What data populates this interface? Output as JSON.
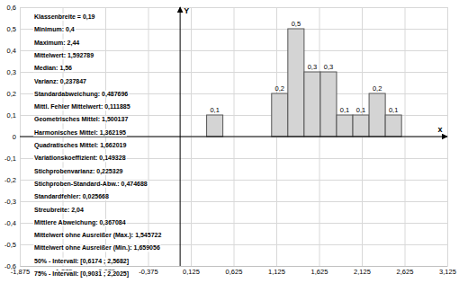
{
  "chart_data": {
    "type": "histogram",
    "x_label": "x",
    "y_label": "Y",
    "bins": [
      0.31,
      0.5,
      0.69,
      0.88,
      1.07,
      1.26,
      1.45,
      1.64,
      1.83,
      2.02,
      2.21,
      2.4,
      2.59
    ],
    "values": [
      0.1,
      0,
      0,
      0,
      0.2,
      0.5,
      0.3,
      0.3,
      0.1,
      0.1,
      0.2,
      0.1
    ],
    "value_labels": [
      "0,1",
      null,
      null,
      null,
      "0,2",
      "0,5",
      "0,3",
      "0,3",
      "0,1",
      "0,1",
      "0,2",
      "0,1"
    ],
    "data_labels": true,
    "color": "#d4d4d4",
    "grid": true,
    "xlim": [
      -1.875,
      3.125
    ],
    "xticks": [
      {
        "value": -1.875,
        "label": "-1,875"
      },
      {
        "value": -1.375,
        "label": "-1,375"
      },
      {
        "value": -0.875,
        "label": "-0,875"
      },
      {
        "value": -0.375,
        "label": "-0,375"
      },
      {
        "value": 0.125,
        "label": "0,125"
      },
      {
        "value": 0.625,
        "label": "0,625"
      },
      {
        "value": 1.125,
        "label": "1,125"
      },
      {
        "value": 1.625,
        "label": "1,625"
      },
      {
        "value": 2.125,
        "label": "2,125"
      },
      {
        "value": 2.625,
        "label": "2,625"
      },
      {
        "value": 3.125,
        "label": "3,125"
      }
    ],
    "ylim": [
      -0.6,
      0.6
    ],
    "yticks": [
      {
        "value": -0.6,
        "label": "-0,6"
      },
      {
        "value": -0.5,
        "label": "-0,5"
      },
      {
        "value": -0.4,
        "label": "-0,4"
      },
      {
        "value": -0.3,
        "label": "-0,3"
      },
      {
        "value": -0.2,
        "label": "-0,2"
      },
      {
        "value": -0.1,
        "label": "-0,1"
      },
      0,
      {
        "value": 0.1,
        "label": "0,1"
      },
      {
        "value": 0.2,
        "label": "0,2"
      },
      {
        "value": 0.3,
        "label": "0,3"
      },
      {
        "value": 0.4,
        "label": "0,4"
      },
      {
        "value": 0.5,
        "label": "0,5"
      },
      {
        "value": 0.6,
        "label": "0,6"
      }
    ],
    "annotations": [
      "Klassenbreite = 0,19",
      "Minimum: 0,4",
      "Maximum: 2,44",
      "Mittelwert: 1,592789",
      "Median: 1,56",
      "Varianz: 0,237847",
      "Standardabweichung: 0,487696",
      "Mittl. Fehler Mittelwert: 0,111885",
      "Geometrisches Mittel: 1,500137",
      "Harmonisches Mittel: 1,362195",
      "Quadratisches Mittel: 1,662019",
      "Variationskoeffizient: 0,149328",
      "Stichprobenvarianz: 0,225329",
      "Stichproben-Standard-Abw.: 0,474688",
      "Standardfehler: 0,025668",
      "Streubreite: 2,04",
      "Mittlere Abweichung: 0,367084",
      "Mittelwert ohne Ausreißer (Max.): 1,545722",
      "Mittelwert ohne Ausreißer (Min.): 1,659056",
      "50% - Intervall: [0,6174 ; 2,5682]",
      "75% - Intervall: [0,9031 ; 2,2025]"
    ]
  }
}
